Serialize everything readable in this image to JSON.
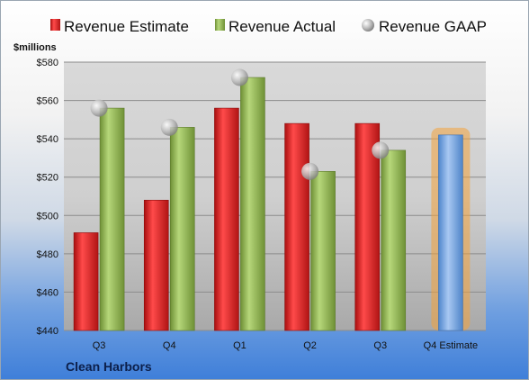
{
  "chart_data": {
    "type": "bar",
    "unit_label": "$millions",
    "company": "Clean Harbors",
    "categories": [
      "Q3",
      "Q4",
      "Q1",
      "Q2",
      "Q3",
      "Q4 Estimate"
    ],
    "ylim": [
      440,
      580
    ],
    "yticks": [
      "$440",
      "$460",
      "$480",
      "$500",
      "$520",
      "$540",
      "$560",
      "$580"
    ],
    "grid": true,
    "legend_position": "top",
    "series": [
      {
        "name": "Revenue Estimate",
        "color": "#d42020",
        "values": [
          491,
          508,
          556,
          548,
          548,
          null
        ]
      },
      {
        "name": "Revenue Actual",
        "color": "#8cb04a",
        "values": [
          556,
          546,
          572,
          523,
          534,
          null
        ]
      },
      {
        "name": "Revenue GAAP",
        "color": "#c0c0c0",
        "values": [
          556,
          546,
          572,
          523,
          534,
          null
        ]
      },
      {
        "name": "Q4 Estimate",
        "color": "#6aa0e0",
        "values": [
          null,
          null,
          null,
          null,
          null,
          542
        ]
      }
    ]
  }
}
